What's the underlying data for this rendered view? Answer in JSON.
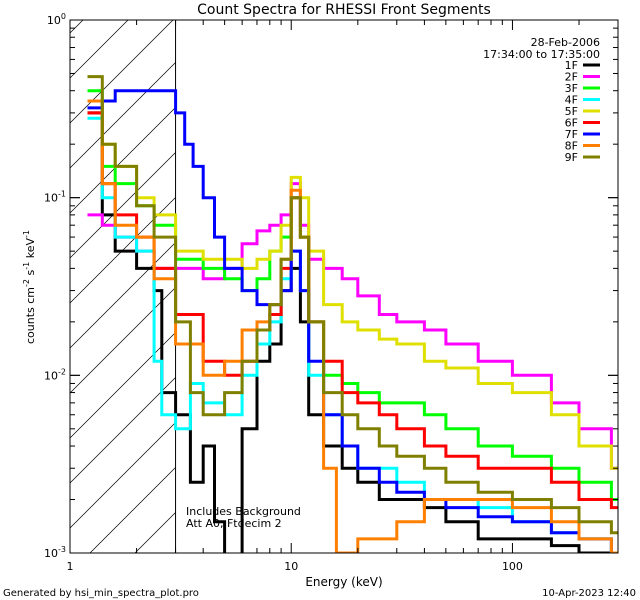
{
  "chart_data": {
    "type": "line",
    "title": "Count Spectra for RHESSI Front Segments",
    "xlabel": "Energy (keV)",
    "ylabel": "counts cm^-2 s^-1 keV^-1",
    "ylabel_parts": {
      "base": "counts cm",
      "exp1": "-2",
      "mid1": " s",
      "exp2": "-1",
      "mid2": " keV",
      "exp3": "-1"
    },
    "x_scale": "log",
    "y_scale": "log",
    "xlim": [
      1,
      300
    ],
    "ylim": [
      0.001,
      1
    ],
    "x_ticks": [
      {
        "v": 1,
        "label": "1"
      },
      {
        "v": 10,
        "label": "10"
      },
      {
        "v": 100,
        "label": "100"
      }
    ],
    "y_ticks": [
      {
        "v": 0.001,
        "base": "10",
        "exp": "-3"
      },
      {
        "v": 0.01,
        "base": "10",
        "exp": "-2"
      },
      {
        "v": 0.1,
        "base": "10",
        "exp": "-1"
      },
      {
        "v": 1,
        "base": "10",
        "exp": "0"
      }
    ],
    "hatched_region_max_keV": 3,
    "date": "28-Feb-2006",
    "time_range": "17:34:00 to 17:35:00",
    "annotations": [
      "Includes Background",
      "Att A0, Ftdecim 2"
    ],
    "legend_position": "top-right",
    "series": [
      {
        "name": "1F",
        "color": "#000000",
        "points": [
          [
            1.2,
            0.3
          ],
          [
            1.4,
            0.08
          ],
          [
            1.6,
            0.05
          ],
          [
            2,
            0.04
          ],
          [
            2.4,
            0.03
          ],
          [
            2.6,
            0.008
          ],
          [
            3,
            0.006
          ],
          [
            3.5,
            0.0025
          ],
          [
            4,
            0.004
          ],
          [
            4.5,
            0.0015
          ],
          [
            5,
            0.0008
          ],
          [
            6,
            0.005
          ],
          [
            7,
            0.012
          ],
          [
            8,
            0.015
          ],
          [
            9,
            0.03
          ],
          [
            10,
            0.04
          ],
          [
            11,
            0.02
          ],
          [
            12,
            0.006
          ],
          [
            14,
            0.004
          ],
          [
            17,
            0.003
          ],
          [
            20,
            0.0025
          ],
          [
            25,
            0.002
          ],
          [
            30,
            0.002
          ],
          [
            40,
            0.0018
          ],
          [
            50,
            0.0015
          ],
          [
            70,
            0.0012
          ],
          [
            100,
            0.0012
          ],
          [
            150,
            0.0011
          ],
          [
            200,
            0.001
          ],
          [
            280,
            0.001
          ]
        ]
      },
      {
        "name": "2F",
        "color": "#ff00ff",
        "points": [
          [
            1.2,
            0.08
          ],
          [
            1.4,
            0.07
          ],
          [
            1.6,
            0.06
          ],
          [
            2,
            0.05
          ],
          [
            2.4,
            0.04
          ],
          [
            3,
            0.04
          ],
          [
            4,
            0.035
          ],
          [
            5,
            0.04
          ],
          [
            6,
            0.055
          ],
          [
            7,
            0.065
          ],
          [
            8,
            0.07
          ],
          [
            9,
            0.08
          ],
          [
            10,
            0.12
          ],
          [
            11,
            0.07
          ],
          [
            12,
            0.045
          ],
          [
            14,
            0.04
          ],
          [
            17,
            0.035
          ],
          [
            20,
            0.028
          ],
          [
            25,
            0.022
          ],
          [
            30,
            0.02
          ],
          [
            40,
            0.018
          ],
          [
            50,
            0.015
          ],
          [
            70,
            0.012
          ],
          [
            100,
            0.01
          ],
          [
            150,
            0.007
          ],
          [
            200,
            0.005
          ],
          [
            280,
            0.003
          ]
        ]
      },
      {
        "name": "3F",
        "color": "#00ff00",
        "points": [
          [
            1.2,
            0.4
          ],
          [
            1.4,
            0.15
          ],
          [
            1.6,
            0.12
          ],
          [
            2,
            0.09
          ],
          [
            2.4,
            0.07
          ],
          [
            3,
            0.045
          ],
          [
            4,
            0.04
          ],
          [
            5,
            0.035
          ],
          [
            6,
            0.03
          ],
          [
            7,
            0.035
          ],
          [
            8,
            0.05
          ],
          [
            9,
            0.06
          ],
          [
            10,
            0.1
          ],
          [
            11,
            0.06
          ],
          [
            12,
            0.02
          ],
          [
            14,
            0.01
          ],
          [
            17,
            0.009
          ],
          [
            20,
            0.008
          ],
          [
            25,
            0.007
          ],
          [
            30,
            0.007
          ],
          [
            40,
            0.006
          ],
          [
            50,
            0.005
          ],
          [
            70,
            0.004
          ],
          [
            100,
            0.0035
          ],
          [
            150,
            0.003
          ],
          [
            200,
            0.0025
          ],
          [
            280,
            0.002
          ]
        ]
      },
      {
        "name": "4F",
        "color": "#00ffff",
        "points": [
          [
            1.2,
            0.28
          ],
          [
            1.4,
            0.1
          ],
          [
            1.6,
            0.06
          ],
          [
            2,
            0.05
          ],
          [
            2.4,
            0.012
          ],
          [
            2.6,
            0.006
          ],
          [
            3,
            0.005
          ],
          [
            3.5,
            0.009
          ],
          [
            4,
            0.007
          ],
          [
            5,
            0.006
          ],
          [
            6,
            0.01
          ],
          [
            7,
            0.015
          ],
          [
            8,
            0.02
          ],
          [
            9,
            0.035
          ],
          [
            10,
            0.05
          ],
          [
            11,
            0.03
          ],
          [
            12,
            0.01
          ],
          [
            14,
            0.006
          ],
          [
            17,
            0.004
          ],
          [
            20,
            0.003
          ],
          [
            25,
            0.003
          ],
          [
            30,
            0.0025
          ],
          [
            40,
            0.002
          ],
          [
            50,
            0.002
          ],
          [
            70,
            0.0018
          ],
          [
            100,
            0.0015
          ],
          [
            150,
            0.0013
          ],
          [
            200,
            0.0012
          ],
          [
            280,
            0.001
          ]
        ]
      },
      {
        "name": "5F",
        "color": "#e0e000",
        "points": [
          [
            1.2,
            0.35
          ],
          [
            1.4,
            0.2
          ],
          [
            1.6,
            0.15
          ],
          [
            2,
            0.1
          ],
          [
            2.4,
            0.08
          ],
          [
            3,
            0.05
          ],
          [
            4,
            0.045
          ],
          [
            5,
            0.045
          ],
          [
            6,
            0.04
          ],
          [
            7,
            0.045
          ],
          [
            8,
            0.05
          ],
          [
            9,
            0.07
          ],
          [
            10,
            0.13
          ],
          [
            11,
            0.1
          ],
          [
            12,
            0.05
          ],
          [
            14,
            0.025
          ],
          [
            17,
            0.02
          ],
          [
            20,
            0.018
          ],
          [
            25,
            0.016
          ],
          [
            30,
            0.015
          ],
          [
            40,
            0.012
          ],
          [
            50,
            0.011
          ],
          [
            70,
            0.009
          ],
          [
            100,
            0.008
          ],
          [
            150,
            0.006
          ],
          [
            200,
            0.004
          ],
          [
            280,
            0.003
          ]
        ]
      },
      {
        "name": "6F",
        "color": "#ff0000",
        "points": [
          [
            1.2,
            0.3
          ],
          [
            1.4,
            0.12
          ],
          [
            1.6,
            0.08
          ],
          [
            2,
            0.06
          ],
          [
            2.4,
            0.04
          ],
          [
            3,
            0.022
          ],
          [
            4,
            0.012
          ],
          [
            5,
            0.01
          ],
          [
            6,
            0.012
          ],
          [
            7,
            0.018
          ],
          [
            8,
            0.022
          ],
          [
            9,
            0.04
          ],
          [
            10,
            0.1
          ],
          [
            11,
            0.06
          ],
          [
            12,
            0.02
          ],
          [
            14,
            0.012
          ],
          [
            17,
            0.008
          ],
          [
            20,
            0.007
          ],
          [
            25,
            0.006
          ],
          [
            30,
            0.005
          ],
          [
            40,
            0.004
          ],
          [
            50,
            0.0035
          ],
          [
            70,
            0.003
          ],
          [
            100,
            0.003
          ],
          [
            150,
            0.0025
          ],
          [
            200,
            0.002
          ],
          [
            280,
            0.0018
          ]
        ]
      },
      {
        "name": "7F",
        "color": "#0000ff",
        "points": [
          [
            1.2,
            0.32
          ],
          [
            1.4,
            0.35
          ],
          [
            1.6,
            0.4
          ],
          [
            2,
            0.4
          ],
          [
            2.4,
            0.4
          ],
          [
            3,
            0.3
          ],
          [
            3.3,
            0.2
          ],
          [
            3.6,
            0.15
          ],
          [
            4,
            0.1
          ],
          [
            4.5,
            0.06
          ],
          [
            5,
            0.04
          ],
          [
            6,
            0.03
          ],
          [
            7,
            0.025
          ],
          [
            8,
            0.025
          ],
          [
            9,
            0.03
          ],
          [
            10,
            0.05
          ],
          [
            11,
            0.03
          ],
          [
            12,
            0.012
          ],
          [
            14,
            0.006
          ],
          [
            17,
            0.004
          ],
          [
            20,
            0.003
          ],
          [
            25,
            0.0025
          ],
          [
            30,
            0.0022
          ],
          [
            40,
            0.002
          ],
          [
            50,
            0.0018
          ],
          [
            70,
            0.0016
          ],
          [
            100,
            0.0015
          ],
          [
            150,
            0.0013
          ],
          [
            200,
            0.0012
          ],
          [
            280,
            0.001
          ]
        ]
      },
      {
        "name": "8F",
        "color": "#ff8000",
        "points": [
          [
            1.2,
            0.35
          ],
          [
            1.4,
            0.12
          ],
          [
            1.6,
            0.07
          ],
          [
            2,
            0.06
          ],
          [
            2.4,
            0.035
          ],
          [
            3,
            0.015
          ],
          [
            4,
            0.01
          ],
          [
            5,
            0.012
          ],
          [
            6,
            0.018
          ],
          [
            7,
            0.02
          ],
          [
            8,
            0.025
          ],
          [
            9,
            0.045
          ],
          [
            10,
            0.11
          ],
          [
            11,
            0.06
          ],
          [
            12,
            0.02
          ],
          [
            14,
            0.003
          ],
          [
            16,
            0.001
          ],
          [
            20,
            0.0012
          ],
          [
            25,
            0.0012
          ],
          [
            30,
            0.0015
          ],
          [
            40,
            0.002
          ],
          [
            50,
            0.002
          ],
          [
            70,
            0.002
          ],
          [
            100,
            0.0018
          ],
          [
            150,
            0.0015
          ],
          [
            200,
            0.0012
          ],
          [
            280,
            0.001
          ]
        ]
      },
      {
        "name": "9F",
        "color": "#808000",
        "points": [
          [
            1.2,
            0.48
          ],
          [
            1.4,
            0.2
          ],
          [
            1.6,
            0.15
          ],
          [
            2,
            0.09
          ],
          [
            2.4,
            0.06
          ],
          [
            3,
            0.02
          ],
          [
            3.5,
            0.008
          ],
          [
            4,
            0.006
          ],
          [
            5,
            0.008
          ],
          [
            6,
            0.012
          ],
          [
            7,
            0.018
          ],
          [
            8,
            0.025
          ],
          [
            9,
            0.045
          ],
          [
            10,
            0.1
          ],
          [
            11,
            0.06
          ],
          [
            12,
            0.02
          ],
          [
            14,
            0.008
          ],
          [
            17,
            0.006
          ],
          [
            20,
            0.005
          ],
          [
            25,
            0.004
          ],
          [
            30,
            0.0035
          ],
          [
            40,
            0.003
          ],
          [
            50,
            0.0025
          ],
          [
            70,
            0.0022
          ],
          [
            100,
            0.002
          ],
          [
            150,
            0.0018
          ],
          [
            200,
            0.0015
          ],
          [
            280,
            0.0013
          ]
        ]
      }
    ]
  },
  "footer": {
    "generated_by": "Generated by hsi_min_spectra_plot.pro",
    "timestamp": "10-Apr-2023 12:40"
  }
}
